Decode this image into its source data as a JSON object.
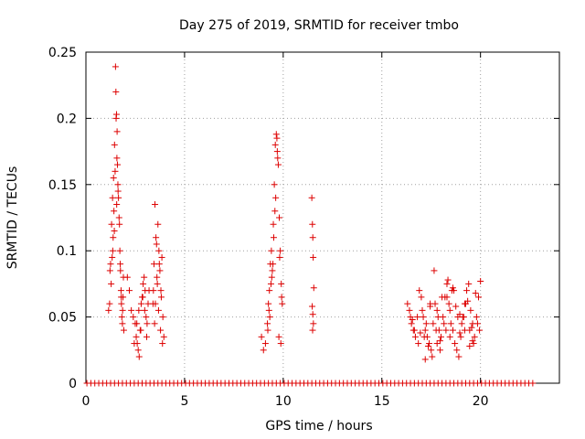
{
  "chart_data": {
    "type": "scatter",
    "title": "Day 275 of 2019, SRMTID for receiver tmbo",
    "xlabel": "GPS time / hours",
    "ylabel": "SRMTID / TECUs",
    "xlim": [
      0,
      24
    ],
    "ylim": [
      0,
      0.25
    ],
    "grid": true,
    "marker": "+",
    "series_color": "#dd0000",
    "x_ticks": [
      {
        "value": 0,
        "label": "0"
      },
      {
        "value": 5,
        "label": "5"
      },
      {
        "value": 10,
        "label": "10"
      },
      {
        "value": 15,
        "label": "15"
      },
      {
        "value": 20,
        "label": "20"
      }
    ],
    "y_ticks": [
      {
        "value": 0,
        "label": "0"
      },
      {
        "value": 0.05,
        "label": "0.05"
      },
      {
        "value": 0.1,
        "label": "0.1"
      },
      {
        "value": 0.15,
        "label": "0.15"
      },
      {
        "value": 0.2,
        "label": "0.2"
      },
      {
        "value": 0.25,
        "label": "0.25"
      }
    ],
    "series": [
      {
        "name": "SRMTID",
        "x": [
          0.05,
          0.25,
          0.45,
          0.65,
          0.85,
          1.05,
          1.25,
          1.45,
          1.65,
          1.85,
          2.05,
          2.25,
          2.45,
          2.65,
          2.85,
          3.05,
          3.25,
          3.45,
          3.65,
          3.85,
          4.05,
          4.25,
          4.45,
          4.65,
          4.85,
          5.05,
          5.25,
          5.45,
          5.65,
          5.85,
          6.05,
          6.25,
          6.45,
          6.65,
          6.85,
          7.05,
          7.25,
          7.45,
          7.65,
          7.85,
          8.05,
          8.25,
          8.45,
          8.65,
          8.85,
          9.05,
          9.25,
          9.45,
          9.65,
          9.85,
          10.05,
          10.25,
          10.45,
          10.65,
          10.85,
          11.05,
          11.25,
          11.45,
          11.65,
          11.85,
          12.05,
          12.25,
          12.45,
          12.65,
          12.85,
          13.05,
          13.25,
          13.45,
          13.65,
          13.85,
          14.05,
          14.25,
          14.45,
          14.65,
          14.85,
          15.05,
          15.25,
          15.45,
          15.65,
          15.85,
          16.05,
          16.25,
          16.45,
          16.65,
          16.85,
          17.05,
          17.25,
          17.45,
          17.65,
          17.85,
          18.05,
          18.25,
          18.45,
          18.65,
          18.85,
          19.05,
          19.25,
          19.45,
          19.65,
          19.85,
          20.05,
          20.25,
          20.45,
          20.65,
          20.85,
          21.05,
          21.25,
          21.45,
          21.65,
          21.85,
          22.05,
          22.25,
          22.45,
          22.65,
          1.2,
          1.25,
          1.3,
          1.35,
          1.4,
          1.45,
          1.5,
          1.52,
          1.55,
          1.58,
          1.6,
          1.62,
          1.65,
          1.7,
          1.72,
          1.75,
          1.78,
          1.8,
          1.82,
          1.85,
          1.88,
          1.9,
          1.15,
          1.28,
          1.33,
          1.38,
          1.42,
          1.48,
          1.53,
          1.57,
          1.63,
          1.68,
          1.74,
          1.79,
          1.86,
          1.92,
          1.22,
          1.36,
          1.44,
          1.56,
          2.1,
          2.2,
          2.3,
          2.4,
          2.5,
          2.55,
          2.6,
          2.65,
          2.7,
          2.75,
          2.8,
          2.85,
          2.9,
          2.95,
          3.0,
          3.05,
          3.1,
          3.15,
          3.2,
          2.45,
          2.58,
          2.68,
          2.78,
          2.88,
          2.98,
          3.08,
          3.4,
          3.45,
          3.5,
          3.55,
          3.6,
          3.65,
          3.7,
          3.75,
          3.8,
          3.85,
          3.9,
          3.95,
          3.42,
          3.52,
          3.62,
          3.72,
          3.82,
          3.48,
          3.58,
          3.68,
          3.78,
          3.88,
          8.9,
          9.0,
          9.1,
          9.2,
          9.25,
          9.3,
          9.35,
          9.4,
          9.45,
          9.5,
          9.55,
          9.6,
          9.65,
          9.7,
          9.75,
          9.8,
          9.85,
          9.9,
          9.95,
          9.22,
          9.32,
          9.42,
          9.52,
          9.62,
          9.72,
          9.82,
          9.92,
          9.28,
          9.38,
          9.48,
          9.58,
          9.68,
          9.78,
          9.88,
          11.45,
          11.48,
          11.5,
          11.52,
          11.55,
          11.47,
          11.5,
          11.53,
          11.49,
          16.3,
          16.4,
          16.5,
          16.6,
          16.7,
          16.8,
          16.9,
          17.0,
          17.1,
          17.2,
          17.3,
          17.4,
          17.5,
          17.6,
          17.7,
          17.8,
          17.9,
          18.0,
          18.1,
          18.2,
          18.3,
          18.4,
          18.5,
          18.6,
          18.7,
          18.8,
          18.9,
          19.0,
          19.1,
          19.2,
          19.3,
          19.4,
          19.5,
          19.6,
          19.7,
          19.8,
          19.9,
          20.0,
          16.45,
          16.65,
          16.85,
          17.05,
          17.25,
          17.45,
          17.65,
          17.85,
          18.05,
          18.25,
          18.45,
          18.65,
          18.85,
          19.05,
          19.25,
          19.45,
          19.65,
          19.85,
          17.15,
          17.35,
          17.55,
          17.75,
          17.95,
          18.15,
          18.35,
          18.55,
          18.75,
          18.95,
          19.15,
          19.35,
          19.55,
          19.75,
          16.55,
          16.95,
          17.45,
          17.95,
          18.45,
          18.95,
          19.45,
          19.95,
          17.2,
          17.8,
          18.3,
          18.6,
          19.2,
          19.6
        ],
        "y": [
          0,
          0,
          0,
          0,
          0,
          0,
          0,
          0,
          0,
          0,
          0,
          0,
          0,
          0,
          0,
          0,
          0,
          0,
          0,
          0,
          0,
          0,
          0,
          0,
          0,
          0,
          0,
          0,
          0,
          0,
          0,
          0,
          0,
          0,
          0,
          0,
          0,
          0,
          0,
          0,
          0,
          0,
          0,
          0,
          0,
          0,
          0,
          0,
          0,
          0,
          0,
          0,
          0,
          0,
          0,
          0,
          0,
          0,
          0,
          0,
          0,
          0,
          0,
          0,
          0,
          0,
          0,
          0,
          0,
          0,
          0,
          0,
          0,
          0,
          0,
          0,
          0,
          0,
          0,
          0,
          0,
          0,
          0,
          0,
          0,
          0,
          0,
          0,
          0,
          0,
          0,
          0,
          0,
          0,
          0,
          0,
          0,
          0,
          0,
          0,
          0,
          0,
          0,
          0,
          0,
          0,
          0,
          0,
          0,
          0,
          0,
          0,
          0,
          0,
          0.06,
          0.09,
          0.12,
          0.14,
          0.155,
          0.18,
          0.239,
          0.22,
          0.203,
          0.19,
          0.165,
          0.15,
          0.14,
          0.12,
          0.1,
          0.085,
          0.07,
          0.06,
          0.05,
          0.045,
          0.065,
          0.08,
          0.055,
          0.075,
          0.095,
          0.11,
          0.13,
          0.16,
          0.2,
          0.17,
          0.145,
          0.125,
          0.09,
          0.065,
          0.055,
          0.04,
          0.085,
          0.1,
          0.115,
          0.135,
          0.08,
          0.07,
          0.055,
          0.05,
          0.045,
          0.035,
          0.03,
          0.025,
          0.02,
          0.04,
          0.06,
          0.065,
          0.075,
          0.08,
          0.07,
          0.05,
          0.045,
          0.06,
          0.07,
          0.03,
          0.045,
          0.055,
          0.04,
          0.065,
          0.055,
          0.035,
          0.06,
          0.09,
          0.135,
          0.11,
          0.08,
          0.12,
          0.1,
          0.085,
          0.07,
          0.095,
          0.05,
          0.035,
          0.07,
          0.06,
          0.075,
          0.09,
          0.065,
          0.045,
          0.105,
          0.055,
          0.04,
          0.03,
          0.035,
          0.025,
          0.03,
          0.045,
          0.06,
          0.07,
          0.09,
          0.1,
          0.085,
          0.12,
          0.15,
          0.18,
          0.188,
          0.175,
          0.165,
          0.125,
          0.1,
          0.075,
          0.06,
          0.04,
          0.05,
          0.08,
          0.11,
          0.14,
          0.17,
          0.095,
          0.065,
          0.055,
          0.075,
          0.09,
          0.13,
          0.185,
          0.035,
          0.03,
          0.14,
          0.12,
          0.11,
          0.095,
          0.072,
          0.058,
          0.052,
          0.045,
          0.04,
          0.06,
          0.055,
          0.045,
          0.04,
          0.035,
          0.05,
          0.07,
          0.065,
          0.05,
          0.04,
          0.035,
          0.03,
          0.025,
          0.045,
          0.06,
          0.055,
          0.04,
          0.035,
          0.05,
          0.065,
          0.075,
          0.06,
          0.045,
          0.04,
          0.03,
          0.025,
          0.02,
          0.035,
          0.05,
          0.06,
          0.07,
          0.075,
          0.055,
          0.045,
          0.035,
          0.05,
          0.065,
          0.077,
          0.05,
          0.04,
          0.03,
          0.055,
          0.045,
          0.06,
          0.085,
          0.05,
          0.065,
          0.04,
          0.055,
          0.07,
          0.05,
          0.045,
          0.06,
          0.04,
          0.03,
          0.045,
          0.035,
          0.028,
          0.02,
          0.04,
          0.032,
          0.045,
          0.078,
          0.07,
          0.058,
          0.038,
          0.05,
          0.062,
          0.042,
          0.068,
          0.048,
          0.038,
          0.058,
          0.025,
          0.035,
          0.052,
          0.028,
          0.04,
          0.018,
          0.03,
          0.065,
          0.072,
          0.04,
          0.032
        ]
      }
    ]
  }
}
